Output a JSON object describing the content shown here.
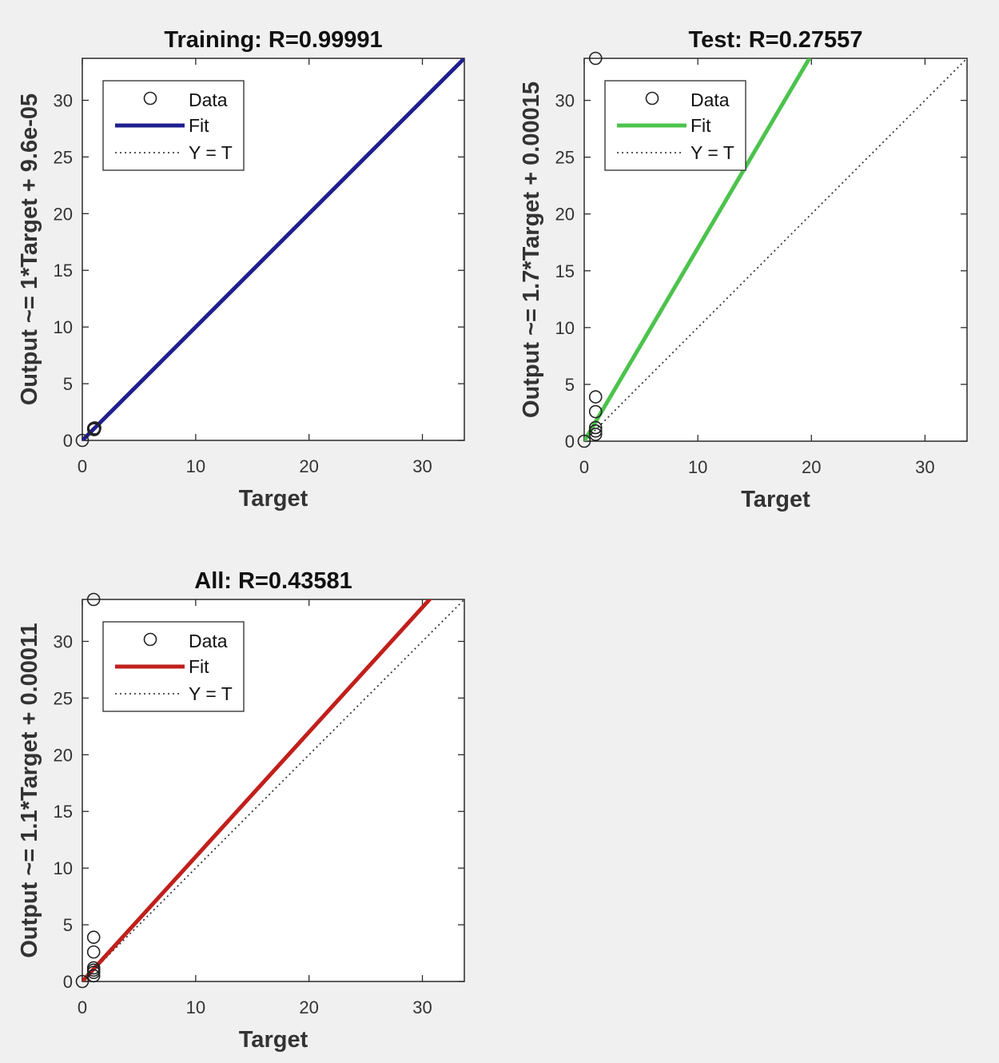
{
  "chart_data": [
    {
      "type": "scatter",
      "title": "Training: R=0.99991",
      "xlabel": "Target",
      "ylabel": "Output ~= 1*Target + 9.6e-05",
      "xlim": [
        0,
        33.7
      ],
      "ylim": [
        0,
        33.7
      ],
      "xticks": [
        0,
        10,
        20,
        30
      ],
      "yticks": [
        0,
        5,
        10,
        15,
        20,
        25,
        30
      ],
      "fit": {
        "slope": 1,
        "intercept": 9.6e-05,
        "color": "#1f1f8f"
      },
      "reference": "Y = T",
      "points": [
        {
          "x": 0,
          "y": 0
        },
        {
          "x": 1,
          "y": 1
        },
        {
          "x": 1,
          "y": 1.05
        },
        {
          "x": 1.05,
          "y": 0.95
        },
        {
          "x": 1.1,
          "y": 1.1
        }
      ],
      "legend": {
        "data": "Data",
        "fit": "Fit",
        "ref": "Y = T",
        "position": "top-left"
      }
    },
    {
      "type": "scatter",
      "title": "Test: R=0.27557",
      "xlabel": "Target",
      "ylabel": "Output ~= 1.7*Target + 0.00015",
      "xlim": [
        0,
        33.7
      ],
      "ylim": [
        0,
        33.7
      ],
      "xticks": [
        0,
        10,
        20,
        30
      ],
      "yticks": [
        0,
        5,
        10,
        15,
        20,
        25,
        30
      ],
      "fit": {
        "slope": 1.7,
        "intercept": 0.00015,
        "color": "#4cc34c"
      },
      "reference": "Y = T",
      "points": [
        {
          "x": 0,
          "y": 0
        },
        {
          "x": 1,
          "y": 33.7
        },
        {
          "x": 1,
          "y": 3.9
        },
        {
          "x": 1,
          "y": 2.6
        },
        {
          "x": 1,
          "y": 1.2
        },
        {
          "x": 1,
          "y": 0.9
        },
        {
          "x": 1,
          "y": 0.6
        }
      ],
      "legend": {
        "data": "Data",
        "fit": "Fit",
        "ref": "Y = T",
        "position": "top-left"
      }
    },
    {
      "type": "scatter",
      "title": "All: R=0.43581",
      "xlabel": "Target",
      "ylabel": "Output ~= 1.1*Target + 0.00011",
      "xlim": [
        0,
        33.7
      ],
      "ylim": [
        0,
        33.7
      ],
      "xticks": [
        0,
        10,
        20,
        30
      ],
      "yticks": [
        0,
        5,
        10,
        15,
        20,
        25,
        30
      ],
      "fit": {
        "slope": 1.1,
        "intercept": 0.00011,
        "color": "#c0201c"
      },
      "reference": "Y = T",
      "points": [
        {
          "x": 0,
          "y": 0
        },
        {
          "x": 1,
          "y": 33.7
        },
        {
          "x": 1,
          "y": 3.9
        },
        {
          "x": 1,
          "y": 2.6
        },
        {
          "x": 1,
          "y": 1.2
        },
        {
          "x": 1,
          "y": 1.0
        },
        {
          "x": 1,
          "y": 0.8
        },
        {
          "x": 1,
          "y": 0.5
        }
      ],
      "legend": {
        "data": "Data",
        "fit": "Fit",
        "ref": "Y = T",
        "position": "top-left"
      }
    }
  ]
}
